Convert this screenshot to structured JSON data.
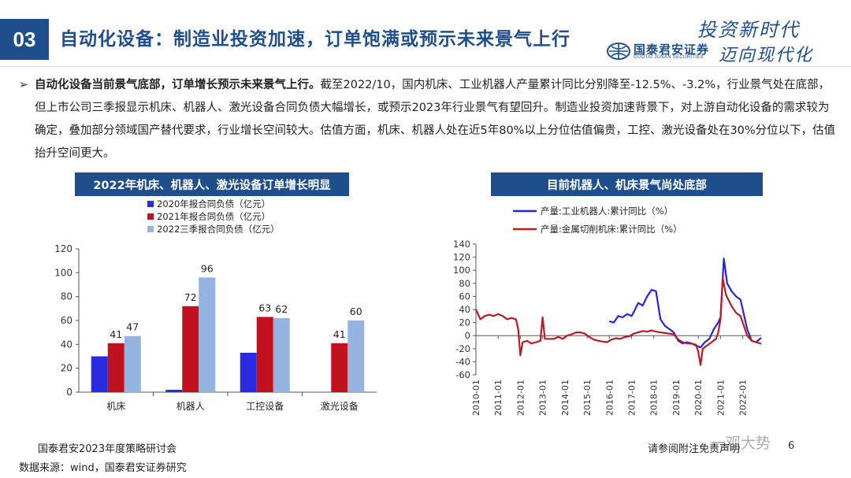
{
  "header": {
    "section_number": "03",
    "title": "自动化设备：制造业投资加速，订单饱满或预示未来景气上行",
    "logo_cn": "国泰君安证券",
    "logo_en": "GUOTAI JUNAN SECURITIES",
    "slogan_line1": "投资新时代",
    "slogan_line2": "迈向现代化",
    "brand_color": "#1f4e8c"
  },
  "bullet": {
    "marker": "➢",
    "bold": "自动化设备当前景气底部，订单增长预示未来景气上行。",
    "text": "截至2022/10，国内机床、工业机器人产量累计同比分别降至-12.5%、-3.2%，行业景气处在底部，但上市公司三季报显示机床、机器人、激光设备合同负债大幅增长，或预示2023年行业景气有望回升。制造业投资加速背景下，对上游自动化设备的需求较为确定，叠加部分领域国产替代要求，行业增长空间较大。估值方面，机床、机器人处在近5年80%以上分位估值偏贵，工控、激光设备处在30%分位以下，估值抬升空间更大。"
  },
  "chart_titles": {
    "left": "2022年机床、机器人、激光设备订单增长明显",
    "right": "目前机器人、机床景气尚处底部"
  },
  "chart_data": [
    {
      "type": "bar",
      "categories": [
        "机床",
        "机器人",
        "工控设备",
        "激光设备"
      ],
      "series": [
        {
          "name": "2020年报合同负债（亿元）",
          "color": "#2a2ae0",
          "values": [
            30,
            2,
            33,
            null
          ],
          "labels": [
            "",
            "",
            "",
            ""
          ]
        },
        {
          "name": "2021年报合同负债（亿元）",
          "color": "#c0111f",
          "values": [
            41,
            72,
            63,
            41
          ],
          "labels": [
            "41",
            "72",
            "63",
            "41"
          ]
        },
        {
          "name": "2022三季报合同负债（亿元）",
          "color": "#94b3e0",
          "values": [
            47,
            96,
            62,
            60
          ],
          "labels": [
            "47",
            "96",
            "62",
            "60"
          ]
        }
      ],
      "ylim": [
        0,
        120
      ],
      "yticks": [
        "0",
        "20",
        "40",
        "60",
        "80",
        "100",
        "120"
      ],
      "legend_position": "top"
    },
    {
      "type": "line",
      "x_range": [
        2010.0,
        2022.83
      ],
      "ylim": [
        -60,
        140
      ],
      "yticks": [
        "-60",
        "-40",
        "-20",
        "0",
        "20",
        "40",
        "60",
        "80",
        "100",
        "120",
        "140"
      ],
      "xtick_labels": [
        "2010-01",
        "2011-01",
        "2012-01",
        "2013-01",
        "2014-01",
        "2015-01",
        "2016-01",
        "2017-01",
        "2018-01",
        "2019-01",
        "2020-01",
        "2021-01",
        "2022-01"
      ],
      "legend_position": "top-left",
      "series": [
        {
          "name": "产量:工业机器人:累计同比（%）",
          "color": "#2626d9",
          "points": [
            [
              2016.0,
              22
            ],
            [
              2016.2,
              20
            ],
            [
              2016.4,
              30
            ],
            [
              2016.6,
              28
            ],
            [
              2016.8,
              33
            ],
            [
              2017.0,
              30
            ],
            [
              2017.1,
              36
            ],
            [
              2017.3,
              50
            ],
            [
              2017.5,
              46
            ],
            [
              2017.7,
              60
            ],
            [
              2017.9,
              70
            ],
            [
              2018.1,
              68
            ],
            [
              2018.3,
              25
            ],
            [
              2018.5,
              15
            ],
            [
              2018.7,
              10
            ],
            [
              2018.9,
              5
            ],
            [
              2019.1,
              -8
            ],
            [
              2019.3,
              -12
            ],
            [
              2019.5,
              -10
            ],
            [
              2019.7,
              -12
            ],
            [
              2019.9,
              -15
            ],
            [
              2020.1,
              -18
            ],
            [
              2020.3,
              -10
            ],
            [
              2020.5,
              -5
            ],
            [
              2020.7,
              10
            ],
            [
              2020.9,
              20
            ],
            [
              2021.0,
              28
            ],
            [
              2021.15,
              118
            ],
            [
              2021.3,
              80
            ],
            [
              2021.5,
              68
            ],
            [
              2021.7,
              60
            ],
            [
              2021.9,
              55
            ],
            [
              2022.0,
              40
            ],
            [
              2022.2,
              10
            ],
            [
              2022.4,
              -8
            ],
            [
              2022.6,
              -10
            ],
            [
              2022.83,
              -3.2
            ]
          ]
        },
        {
          "name": "产量:金属切削机床:累计同比（%）",
          "color": "#b81d24",
          "points": [
            [
              2010.0,
              40
            ],
            [
              2010.2,
              25
            ],
            [
              2010.4,
              30
            ],
            [
              2010.6,
              32
            ],
            [
              2010.8,
              30
            ],
            [
              2011.0,
              33
            ],
            [
              2011.2,
              30
            ],
            [
              2011.4,
              25
            ],
            [
              2011.6,
              27
            ],
            [
              2011.8,
              25
            ],
            [
              2011.9,
              10
            ],
            [
              2012.0,
              -30
            ],
            [
              2012.1,
              -10
            ],
            [
              2012.3,
              -8
            ],
            [
              2012.5,
              -12
            ],
            [
              2012.7,
              -10
            ],
            [
              2012.9,
              -8
            ],
            [
              2013.0,
              28
            ],
            [
              2013.1,
              -5
            ],
            [
              2013.3,
              -5
            ],
            [
              2013.5,
              -5
            ],
            [
              2013.7,
              -2
            ],
            [
              2013.9,
              -5
            ],
            [
              2014.1,
              0
            ],
            [
              2014.3,
              2
            ],
            [
              2014.5,
              5
            ],
            [
              2014.7,
              5
            ],
            [
              2014.9,
              3
            ],
            [
              2015.1,
              -2
            ],
            [
              2015.3,
              -6
            ],
            [
              2015.5,
              -8
            ],
            [
              2015.7,
              -9
            ],
            [
              2015.9,
              -10
            ],
            [
              2016.1,
              -6
            ],
            [
              2016.3,
              -4
            ],
            [
              2016.5,
              -5
            ],
            [
              2016.7,
              -2
            ],
            [
              2016.9,
              -1
            ],
            [
              2017.1,
              3
            ],
            [
              2017.3,
              5
            ],
            [
              2017.5,
              7
            ],
            [
              2017.7,
              6
            ],
            [
              2017.9,
              8
            ],
            [
              2018.1,
              6
            ],
            [
              2018.3,
              5
            ],
            [
              2018.5,
              4
            ],
            [
              2018.7,
              3
            ],
            [
              2018.9,
              2
            ],
            [
              2019.1,
              -6
            ],
            [
              2019.3,
              -10
            ],
            [
              2019.5,
              -12
            ],
            [
              2019.7,
              -12
            ],
            [
              2019.9,
              -14
            ],
            [
              2020.0,
              -25
            ],
            [
              2020.1,
              -45
            ],
            [
              2020.2,
              -20
            ],
            [
              2020.4,
              -15
            ],
            [
              2020.6,
              -10
            ],
            [
              2020.8,
              -5
            ],
            [
              2020.9,
              5
            ],
            [
              2021.0,
              25
            ],
            [
              2021.1,
              88
            ],
            [
              2021.25,
              62
            ],
            [
              2021.5,
              45
            ],
            [
              2021.7,
              35
            ],
            [
              2021.9,
              30
            ],
            [
              2022.0,
              20
            ],
            [
              2022.2,
              0
            ],
            [
              2022.4,
              -8
            ],
            [
              2022.6,
              -10
            ],
            [
              2022.83,
              -12.5
            ]
          ]
        }
      ]
    }
  ],
  "footer": {
    "event": "国泰君安2023年度策略研讨会",
    "source": "数据来源：wind，国泰君安证券研究",
    "disclaimer": "请参阅附注免责声明",
    "watermark": "一观大势",
    "page": "6"
  }
}
